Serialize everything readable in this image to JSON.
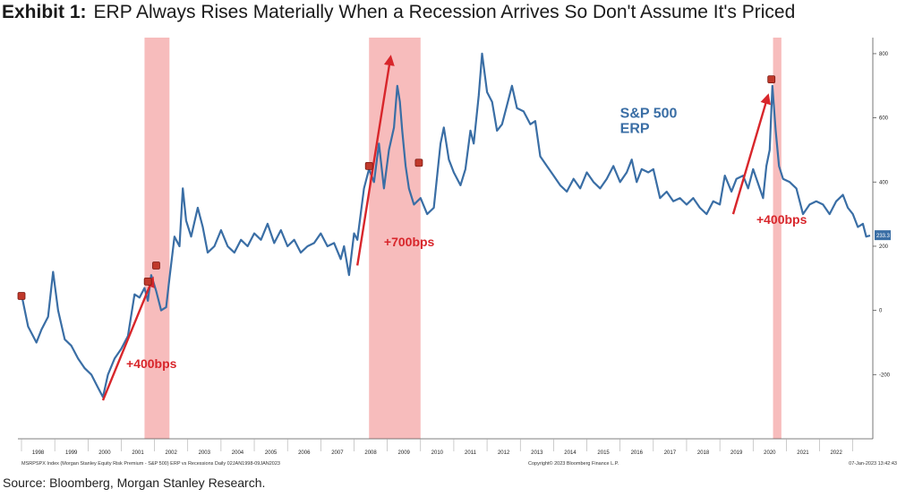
{
  "header": {
    "exhibit": "Exhibit 1:",
    "title": "ERP Always Rises Materially When a Recession Arrives So Don't Assume It's Priced"
  },
  "source": "Source: Bloomberg, Morgan Stanley Research.",
  "chart_data": {
    "type": "line",
    "series": [
      {
        "name": "S&P 500 ERP",
        "name_lines": [
          "S&P 500",
          "ERP"
        ],
        "color": "#3a6ea5",
        "points": [
          [
            1997.5,
            50
          ],
          [
            1997.7,
            -50
          ],
          [
            1997.95,
            -100
          ],
          [
            1998.1,
            -60
          ],
          [
            1998.3,
            -20
          ],
          [
            1998.45,
            120
          ],
          [
            1998.6,
            0
          ],
          [
            1998.8,
            -90
          ],
          [
            1999.0,
            -110
          ],
          [
            1999.2,
            -150
          ],
          [
            1999.4,
            -180
          ],
          [
            1999.6,
            -200
          ],
          [
            1999.8,
            -240
          ],
          [
            1999.95,
            -270
          ],
          [
            2000.1,
            -200
          ],
          [
            2000.3,
            -150
          ],
          [
            2000.5,
            -120
          ],
          [
            2000.7,
            -80
          ],
          [
            2000.9,
            50
          ],
          [
            2001.05,
            40
          ],
          [
            2001.2,
            70
          ],
          [
            2001.3,
            30
          ],
          [
            2001.4,
            110
          ],
          [
            2001.55,
            60
          ],
          [
            2001.7,
            0
          ],
          [
            2001.85,
            10
          ],
          [
            2001.95,
            100
          ],
          [
            2002.1,
            230
          ],
          [
            2002.25,
            200
          ],
          [
            2002.35,
            380
          ],
          [
            2002.45,
            280
          ],
          [
            2002.6,
            230
          ],
          [
            2002.8,
            320
          ],
          [
            2002.95,
            260
          ],
          [
            2003.1,
            180
          ],
          [
            2003.3,
            200
          ],
          [
            2003.5,
            250
          ],
          [
            2003.7,
            200
          ],
          [
            2003.9,
            180
          ],
          [
            2004.1,
            220
          ],
          [
            2004.3,
            200
          ],
          [
            2004.5,
            240
          ],
          [
            2004.7,
            220
          ],
          [
            2004.9,
            270
          ],
          [
            2005.1,
            210
          ],
          [
            2005.3,
            250
          ],
          [
            2005.5,
            200
          ],
          [
            2005.7,
            220
          ],
          [
            2005.9,
            180
          ],
          [
            2006.1,
            200
          ],
          [
            2006.3,
            210
          ],
          [
            2006.5,
            240
          ],
          [
            2006.7,
            200
          ],
          [
            2006.9,
            210
          ],
          [
            2007.1,
            160
          ],
          [
            2007.2,
            200
          ],
          [
            2007.35,
            110
          ],
          [
            2007.5,
            240
          ],
          [
            2007.6,
            220
          ],
          [
            2007.8,
            380
          ],
          [
            2007.95,
            440
          ],
          [
            2008.1,
            400
          ],
          [
            2008.25,
            520
          ],
          [
            2008.4,
            380
          ],
          [
            2008.55,
            500
          ],
          [
            2008.7,
            570
          ],
          [
            2008.8,
            700
          ],
          [
            2008.88,
            650
          ],
          [
            2008.95,
            560
          ],
          [
            2009.05,
            450
          ],
          [
            2009.15,
            380
          ],
          [
            2009.3,
            330
          ],
          [
            2009.5,
            350
          ],
          [
            2009.7,
            300
          ],
          [
            2009.9,
            320
          ],
          [
            2010.1,
            520
          ],
          [
            2010.2,
            570
          ],
          [
            2010.35,
            470
          ],
          [
            2010.5,
            430
          ],
          [
            2010.7,
            390
          ],
          [
            2010.85,
            440
          ],
          [
            2011.0,
            560
          ],
          [
            2011.1,
            520
          ],
          [
            2011.25,
            670
          ],
          [
            2011.35,
            800
          ],
          [
            2011.5,
            680
          ],
          [
            2011.65,
            650
          ],
          [
            2011.8,
            560
          ],
          [
            2011.95,
            580
          ],
          [
            2012.1,
            640
          ],
          [
            2012.25,
            700
          ],
          [
            2012.4,
            630
          ],
          [
            2012.6,
            620
          ],
          [
            2012.8,
            580
          ],
          [
            2012.95,
            590
          ],
          [
            2013.1,
            480
          ],
          [
            2013.3,
            450
          ],
          [
            2013.5,
            420
          ],
          [
            2013.7,
            390
          ],
          [
            2013.9,
            370
          ],
          [
            2014.1,
            410
          ],
          [
            2014.3,
            380
          ],
          [
            2014.5,
            430
          ],
          [
            2014.7,
            400
          ],
          [
            2014.9,
            380
          ],
          [
            2015.1,
            410
          ],
          [
            2015.3,
            450
          ],
          [
            2015.5,
            400
          ],
          [
            2015.7,
            430
          ],
          [
            2015.85,
            470
          ],
          [
            2016.0,
            400
          ],
          [
            2016.15,
            440
          ],
          [
            2016.35,
            430
          ],
          [
            2016.5,
            440
          ],
          [
            2016.7,
            350
          ],
          [
            2016.9,
            370
          ],
          [
            2017.1,
            340
          ],
          [
            2017.3,
            350
          ],
          [
            2017.5,
            330
          ],
          [
            2017.7,
            350
          ],
          [
            2017.9,
            320
          ],
          [
            2018.1,
            300
          ],
          [
            2018.3,
            340
          ],
          [
            2018.5,
            330
          ],
          [
            2018.65,
            420
          ],
          [
            2018.85,
            370
          ],
          [
            2019.0,
            410
          ],
          [
            2019.2,
            420
          ],
          [
            2019.35,
            380
          ],
          [
            2019.5,
            440
          ],
          [
            2019.7,
            380
          ],
          [
            2019.8,
            350
          ],
          [
            2019.9,
            450
          ],
          [
            2020.0,
            500
          ],
          [
            2020.08,
            700
          ],
          [
            2020.18,
            560
          ],
          [
            2020.28,
            450
          ],
          [
            2020.4,
            410
          ],
          [
            2020.6,
            400
          ],
          [
            2020.8,
            380
          ],
          [
            2021.0,
            300
          ],
          [
            2021.2,
            330
          ],
          [
            2021.4,
            340
          ],
          [
            2021.6,
            330
          ],
          [
            2021.8,
            300
          ],
          [
            2022.0,
            340
          ],
          [
            2022.2,
            360
          ],
          [
            2022.35,
            320
          ],
          [
            2022.5,
            300
          ],
          [
            2022.65,
            260
          ],
          [
            2022.8,
            270
          ],
          [
            2022.9,
            230
          ],
          [
            2023.02,
            233
          ]
        ]
      }
    ],
    "x_ticks": [
      "1998",
      "1999",
      "2000",
      "2001",
      "2002",
      "2003",
      "2004",
      "2005",
      "2006",
      "2007",
      "2008",
      "2009",
      "2010",
      "2011",
      "2012",
      "2013",
      "2014",
      "2015",
      "2016",
      "2017",
      "2018",
      "2019",
      "2020",
      "2021",
      "2022"
    ],
    "xlim": [
      1997.5,
      2023.1
    ],
    "y_ticks": [
      "800",
      "600",
      "400",
      "200",
      "0",
      "-200"
    ],
    "ylim": [
      -400,
      850
    ],
    "y_axis_side": "right",
    "last_value": "233.3",
    "recessions": [
      {
        "start": 2001.2,
        "end": 2001.95
      },
      {
        "start": 2007.95,
        "end": 2009.5
      },
      {
        "start": 2020.1,
        "end": 2020.35
      }
    ],
    "arrows": [
      {
        "from": [
          1999.95,
          -280
        ],
        "to": [
          2001.45,
          100
        ],
        "label": "+400bps",
        "label_at": [
          2000.65,
          -180
        ]
      },
      {
        "from": [
          2007.6,
          140
        ],
        "to": [
          2008.6,
          790
        ],
        "label": "+700bps",
        "label_at": [
          2008.4,
          200
        ]
      },
      {
        "from": [
          2018.9,
          300
        ],
        "to": [
          2019.95,
          670
        ],
        "label": "+400bps",
        "label_at": [
          2019.6,
          270
        ]
      }
    ],
    "markers": [
      [
        1997.5,
        45
      ],
      [
        2001.3,
        90
      ],
      [
        2001.55,
        140
      ],
      [
        2007.95,
        450
      ],
      [
        2009.45,
        460
      ],
      [
        2020.05,
        720
      ]
    ],
    "footer_left": "MSRPSPX Index (Morgan Stanley Equity Risk Premium - S&P 500) ERP vs Recessions  Daily 02JAN1998-09JAN2023",
    "footer_center": "Copyright© 2023 Bloomberg Finance L.P.",
    "footer_right": "07-Jan-2023 13:42:43",
    "grid": false
  }
}
